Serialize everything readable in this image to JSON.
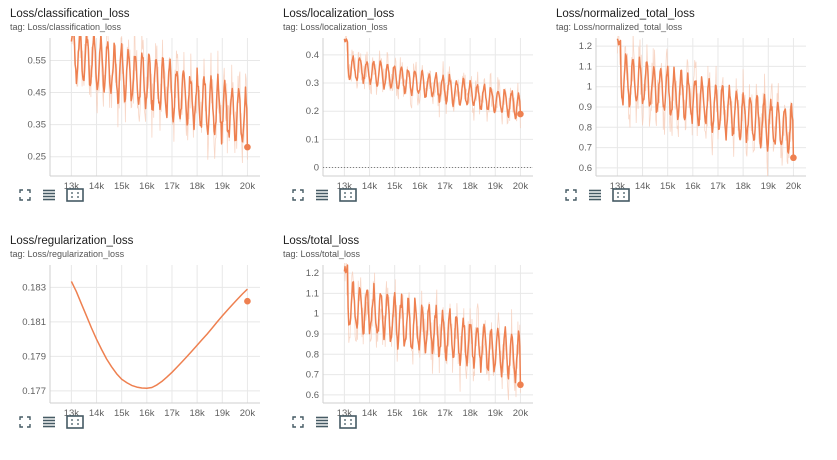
{
  "chart_data": [
    {
      "type": "line",
      "title": "Loss/classification_loss",
      "tag": "tag: Loss/classification_loss",
      "xlabel": "",
      "ylabel": "",
      "xlim": [
        12150,
        20500
      ],
      "ylim": [
        0.19,
        0.62
      ],
      "xticks": [
        13000,
        14000,
        15000,
        16000,
        17000,
        18000,
        19000,
        20000
      ],
      "xtick_labels": [
        "13k",
        "14k",
        "15k",
        "16k",
        "17k",
        "18k",
        "19k",
        "20k"
      ],
      "yticks": [
        0.25,
        0.35,
        0.45,
        0.55
      ],
      "ytick_labels": [
        "0.25",
        "0.35",
        "0.45",
        "0.55"
      ],
      "gen": {
        "x0": 13000,
        "x1": 20000,
        "start": 0.57,
        "end": 0.365,
        "amp": 0.095,
        "raw_amp": 0.04,
        "last": 0.28,
        "spike": 0.62,
        "seed": 3
      },
      "endpoint": {
        "x": 20000,
        "y": 0.28
      },
      "grid": true
    },
    {
      "type": "line",
      "title": "Loss/localization_loss",
      "tag": "tag: Loss/localization_loss",
      "xlabel": "",
      "ylabel": "",
      "xlim": [
        12150,
        20500
      ],
      "ylim": [
        -0.03,
        0.46
      ],
      "xticks": [
        13000,
        14000,
        15000,
        16000,
        17000,
        18000,
        19000,
        20000
      ],
      "xtick_labels": [
        "13k",
        "14k",
        "15k",
        "16k",
        "17k",
        "18k",
        "19k",
        "20k"
      ],
      "yticks": [
        0,
        0.1,
        0.2,
        0.3,
        0.4
      ],
      "ytick_labels": [
        "0",
        "0.1",
        "0.2",
        "0.3",
        "0.4"
      ],
      "zeroline": true,
      "gen": {
        "x0": 13000,
        "x1": 20000,
        "start": 0.36,
        "end": 0.22,
        "amp": 0.05,
        "raw_amp": 0.025,
        "last": 0.19,
        "spike": 0.46,
        "seed": 7
      },
      "endpoint": {
        "x": 20000,
        "y": 0.19
      },
      "grid": true
    },
    {
      "type": "line",
      "title": "Loss/normalized_total_loss",
      "tag": "tag: Loss/normalized_total_loss",
      "xlabel": "",
      "ylabel": "",
      "xlim": [
        12150,
        20500
      ],
      "ylim": [
        0.56,
        1.24
      ],
      "xticks": [
        13000,
        14000,
        15000,
        16000,
        17000,
        18000,
        19000,
        20000
      ],
      "xtick_labels": [
        "13k",
        "14k",
        "15k",
        "16k",
        "17k",
        "18k",
        "19k",
        "20k"
      ],
      "yticks": [
        0.6,
        0.7,
        0.8,
        0.9,
        1.0,
        1.1,
        1.2
      ],
      "ytick_labels": [
        "0.6",
        "0.7",
        "0.8",
        "0.9",
        "1",
        "1.1",
        "1.2"
      ],
      "gen": {
        "x0": 13000,
        "x1": 20000,
        "start": 1.05,
        "end": 0.78,
        "amp": 0.13,
        "raw_amp": 0.06,
        "last": 0.65,
        "spike": 1.24,
        "seed": 11
      },
      "endpoint": {
        "x": 20000,
        "y": 0.65
      },
      "grid": true
    },
    {
      "type": "line",
      "title": "Loss/regularization_loss",
      "tag": "tag: Loss/regularization_loss",
      "xlabel": "",
      "ylabel": "",
      "xlim": [
        12150,
        20500
      ],
      "ylim": [
        0.1763,
        0.1843
      ],
      "xticks": [
        13000,
        14000,
        15000,
        16000,
        17000,
        18000,
        19000,
        20000
      ],
      "xtick_labels": [
        "13k",
        "14k",
        "15k",
        "16k",
        "17k",
        "18k",
        "19k",
        "20k"
      ],
      "yticks": [
        0.177,
        0.179,
        0.181,
        0.183
      ],
      "ytick_labels": [
        "0.177",
        "0.179",
        "0.181",
        "0.183"
      ],
      "points": [
        {
          "x": 13000,
          "y": 0.18335
        },
        {
          "x": 13200,
          "y": 0.18275
        },
        {
          "x": 13400,
          "y": 0.18205
        },
        {
          "x": 13600,
          "y": 0.18135
        },
        {
          "x": 13800,
          "y": 0.18065
        },
        {
          "x": 14000,
          "y": 0.18
        },
        {
          "x": 14200,
          "y": 0.1794
        },
        {
          "x": 14400,
          "y": 0.17885
        },
        {
          "x": 14600,
          "y": 0.1784
        },
        {
          "x": 14800,
          "y": 0.178
        },
        {
          "x": 15000,
          "y": 0.17768
        },
        {
          "x": 15200,
          "y": 0.17748
        },
        {
          "x": 15400,
          "y": 0.17732
        },
        {
          "x": 15600,
          "y": 0.17722
        },
        {
          "x": 15800,
          "y": 0.17717
        },
        {
          "x": 16000,
          "y": 0.17715
        },
        {
          "x": 16200,
          "y": 0.1772
        },
        {
          "x": 16400,
          "y": 0.17735
        },
        {
          "x": 16600,
          "y": 0.17755
        },
        {
          "x": 16800,
          "y": 0.1778
        },
        {
          "x": 17000,
          "y": 0.17808
        },
        {
          "x": 17200,
          "y": 0.17838
        },
        {
          "x": 17400,
          "y": 0.17868
        },
        {
          "x": 17600,
          "y": 0.179
        },
        {
          "x": 17800,
          "y": 0.17932
        },
        {
          "x": 18000,
          "y": 0.17965
        },
        {
          "x": 18200,
          "y": 0.17998
        },
        {
          "x": 18400,
          "y": 0.1803
        },
        {
          "x": 18600,
          "y": 0.18065
        },
        {
          "x": 18800,
          "y": 0.181
        },
        {
          "x": 19000,
          "y": 0.18135
        },
        {
          "x": 19200,
          "y": 0.18168
        },
        {
          "x": 19400,
          "y": 0.182
        },
        {
          "x": 19600,
          "y": 0.18232
        },
        {
          "x": 19800,
          "y": 0.18262
        },
        {
          "x": 20000,
          "y": 0.1829
        }
      ],
      "endpoint": {
        "x": 20000,
        "y": 0.1822
      },
      "grid": true
    },
    {
      "type": "line",
      "title": "Loss/total_loss",
      "tag": "tag: Loss/total_loss",
      "xlabel": "",
      "ylabel": "",
      "xlim": [
        12150,
        20500
      ],
      "ylim": [
        0.56,
        1.24
      ],
      "xticks": [
        13000,
        14000,
        15000,
        16000,
        17000,
        18000,
        19000,
        20000
      ],
      "xtick_labels": [
        "13k",
        "14k",
        "15k",
        "16k",
        "17k",
        "18k",
        "19k",
        "20k"
      ],
      "yticks": [
        0.6,
        0.7,
        0.8,
        0.9,
        1.0,
        1.1,
        1.2
      ],
      "ytick_labels": [
        "0.6",
        "0.7",
        "0.8",
        "0.9",
        "1",
        "1.1",
        "1.2"
      ],
      "gen": {
        "x0": 13000,
        "x1": 20000,
        "start": 1.05,
        "end": 0.78,
        "amp": 0.13,
        "raw_amp": 0.06,
        "last": 0.65,
        "spike": 1.24,
        "seed": 19
      },
      "endpoint": {
        "x": 20000,
        "y": 0.65
      },
      "grid": true
    }
  ],
  "toolbar_icons": [
    "fullscreen-icon",
    "data-table-icon",
    "fit-domain-icon"
  ],
  "colors": {
    "smoothed": "#ee8050",
    "raw": "#f5c9b4",
    "grid": "#e8e8e8",
    "title": "#212121"
  }
}
